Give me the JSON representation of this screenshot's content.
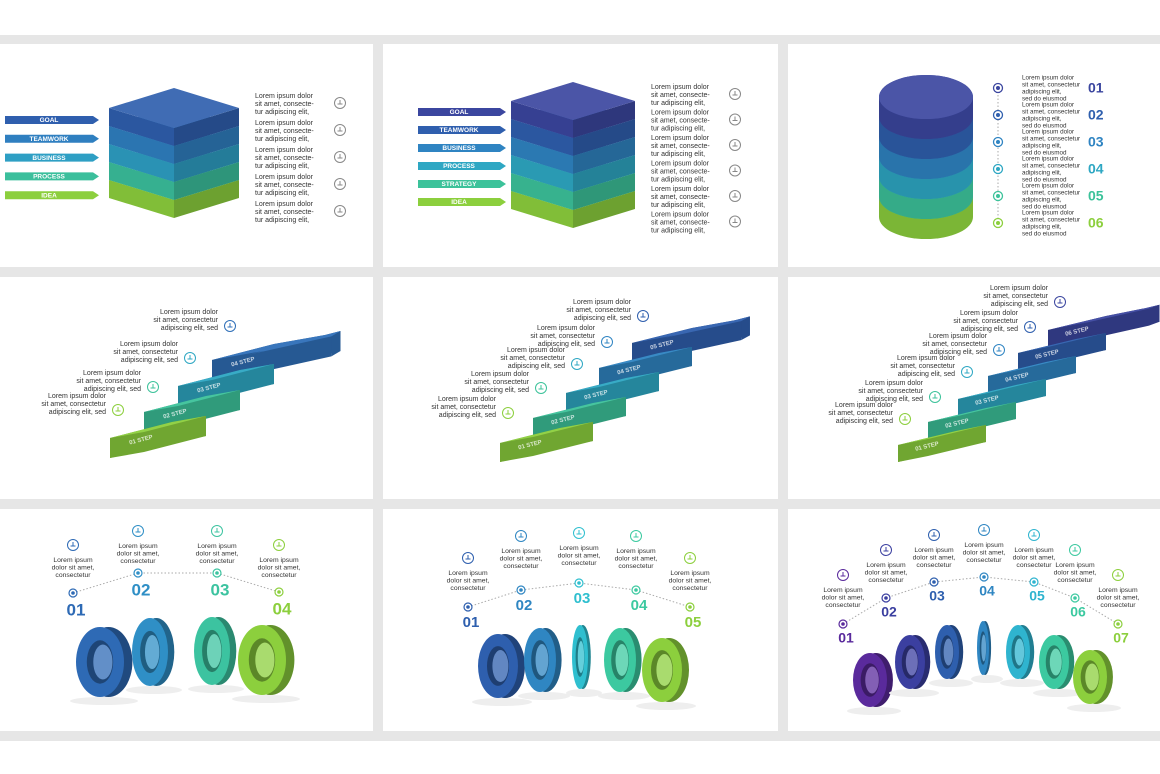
{
  "layer_stacks": [
    {
      "labels": [
        "GOAL",
        "TEAMWORK",
        "BUSINESS",
        "PROCESS",
        "IDEA"
      ],
      "texts": [
        [
          "Lorem ipsum dolor",
          "sit amet, consecte-",
          "tur adipiscing elit,"
        ],
        [
          "Lorem ipsum dolor",
          "sit amet, consecte-",
          "tur adipiscing elit,"
        ],
        [
          "Lorem ipsum dolor",
          "sit amet, consecte-",
          "tur adipiscing elit,"
        ],
        [
          "Lorem ipsum dolor",
          "sit amet, consecte-",
          "tur adipiscing elit,"
        ],
        [
          "Lorem ipsum dolor",
          "sit amet, consecte-",
          "tur adipiscing elit,"
        ]
      ]
    },
    {
      "labels": [
        "GOAL",
        "TEAMWORK",
        "BUSINESS",
        "PROCESS",
        "STRATEGY",
        "IDEA"
      ],
      "texts": [
        [
          "Lorem ipsum dolor",
          "sit amet, consecte-",
          "tur adipiscing elit,"
        ],
        [
          "Lorem ipsum dolor",
          "sit amet, consecte-",
          "tur adipiscing elit,"
        ],
        [
          "Lorem ipsum dolor",
          "sit amet, consecte-",
          "tur adipiscing elit,"
        ],
        [
          "Lorem ipsum dolor",
          "sit amet, consecte-",
          "tur adipiscing elit,"
        ],
        [
          "Lorem ipsum dolor",
          "sit amet, consecte-",
          "tur adipiscing elit,"
        ],
        [
          "Lorem ipsum dolor",
          "sit amet, consecte-",
          "tur adipiscing elit,"
        ]
      ]
    }
  ],
  "cylinder": {
    "numbers": [
      "01",
      "02",
      "03",
      "04",
      "05",
      "06"
    ],
    "texts": [
      [
        "Lorem ipsum dolor",
        "sit amet, consectetur",
        "adipiscing elit,",
        "sed do eiusmod"
      ],
      [
        "Lorem ipsum dolor",
        "sit amet, consectetur",
        "adipiscing elit,",
        "sed do eiusmod"
      ],
      [
        "Lorem ipsum dolor",
        "sit amet, consectetur",
        "adipiscing elit,",
        "sed do eiusmod"
      ],
      [
        "Lorem ipsum dolor",
        "sit amet, consectetur",
        "adipiscing elit,",
        "sed do eiusmod"
      ],
      [
        "Lorem ipsum dolor",
        "sit amet, consectetur",
        "adipiscing elit,",
        "sed do eiusmod"
      ],
      [
        "Lorem ipsum dolor",
        "sit amet, consectetur",
        "adipiscing elit,",
        "sed do eiusmod"
      ]
    ]
  },
  "stairs": [
    {
      "step_labels": [
        "01 STEP",
        "02 STEP",
        "03 STEP",
        "04 STEP"
      ],
      "texts": [
        [
          "Lorem ipsum dolor",
          "sit amet, consectetur",
          "adipiscing elit, sed"
        ],
        [
          "Lorem ipsum dolor",
          "sit amet, consectetur",
          "adipiscing elit, sed"
        ],
        [
          "Lorem ipsum dolor",
          "sit amet, consectetur",
          "adipiscing elit, sed"
        ],
        [
          "Lorem ipsum dolor",
          "sit amet, consectetur",
          "adipiscing elit, sed"
        ]
      ]
    },
    {
      "step_labels": [
        "01 STEP",
        "02 STEP",
        "03 STEP",
        "04 STEP",
        "05 STEP"
      ],
      "texts": [
        [
          "Lorem ipsum dolor",
          "sit amet, consectetur",
          "adipiscing elit, sed"
        ],
        [
          "Lorem ipsum dolor",
          "sit amet, consectetur",
          "adipiscing elit, sed"
        ],
        [
          "Lorem ipsum dolor",
          "sit amet, consectetur",
          "adipiscing elit, sed"
        ],
        [
          "Lorem ipsum dolor",
          "sit amet, consectetur",
          "adipiscing elit, sed"
        ],
        [
          "Lorem ipsum dolor",
          "sit amet, consectetur",
          "adipiscing elit, sed"
        ]
      ]
    },
    {
      "step_labels": [
        "01 STEP",
        "02 STEP",
        "03 STEP",
        "04 STEP",
        "05 STEP",
        "06 STEP"
      ],
      "texts": [
        [
          "Lorem ipsum dolor",
          "sit amet, consectetur",
          "adipiscing elit, sed"
        ],
        [
          "Lorem ipsum dolor",
          "sit amet, consectetur",
          "adipiscing elit, sed"
        ],
        [
          "Lorem ipsum dolor",
          "sit amet, consectetur",
          "adipiscing elit, sed"
        ],
        [
          "Lorem ipsum dolor",
          "sit amet, consectetur",
          "adipiscing elit, sed"
        ],
        [
          "Lorem ipsum dolor",
          "sit amet, consectetur",
          "adipiscing elit, sed"
        ],
        [
          "Lorem ipsum dolor",
          "sit amet, consectetur",
          "adipiscing elit, sed"
        ]
      ]
    }
  ],
  "rings": [
    {
      "numbers": [
        "01",
        "02",
        "03",
        "04"
      ],
      "texts": [
        [
          "Lorem ipsum",
          "dolor sit amet,",
          "consectetur"
        ],
        [
          "Lorem ipsum",
          "dolor sit amet,",
          "consectetur"
        ],
        [
          "Lorem ipsum",
          "dolor sit amet,",
          "consectetur"
        ],
        [
          "Lorem ipsum",
          "dolor sit amet,",
          "consectetur"
        ]
      ]
    },
    {
      "numbers": [
        "01",
        "02",
        "03",
        "04",
        "05"
      ],
      "texts": [
        [
          "Lorem ipsum",
          "dolor sit amet,",
          "consectetur"
        ],
        [
          "Lorem ipsum",
          "dolor sit amet,",
          "consectetur"
        ],
        [
          "Lorem ipsum",
          "dolor sit amet,",
          "consectetur"
        ],
        [
          "Lorem ipsum",
          "dolor sit amet,",
          "consectetur"
        ],
        [
          "Lorem ipsum",
          "dolor sit amet,",
          "consectetur"
        ]
      ]
    },
    {
      "numbers": [
        "01",
        "02",
        "03",
        "04",
        "05",
        "06",
        "07"
      ],
      "texts": [
        [
          "Lorem ipsum",
          "dolor sit amet,",
          "consectetur"
        ],
        [
          "Lorem ipsum",
          "dolor sit amet,",
          "consectetur"
        ],
        [
          "Lorem ipsum",
          "dolor sit amet,",
          "consectetur"
        ],
        [
          "Lorem ipsum",
          "dolor sit amet,",
          "consectetur"
        ],
        [
          "Lorem ipsum",
          "dolor sit amet,",
          "consectetur"
        ],
        [
          "Lorem ipsum",
          "dolor sit amet,",
          "consectetur"
        ],
        [
          "Lorem ipsum",
          "dolor sit amet,",
          "consectetur"
        ]
      ]
    }
  ]
}
